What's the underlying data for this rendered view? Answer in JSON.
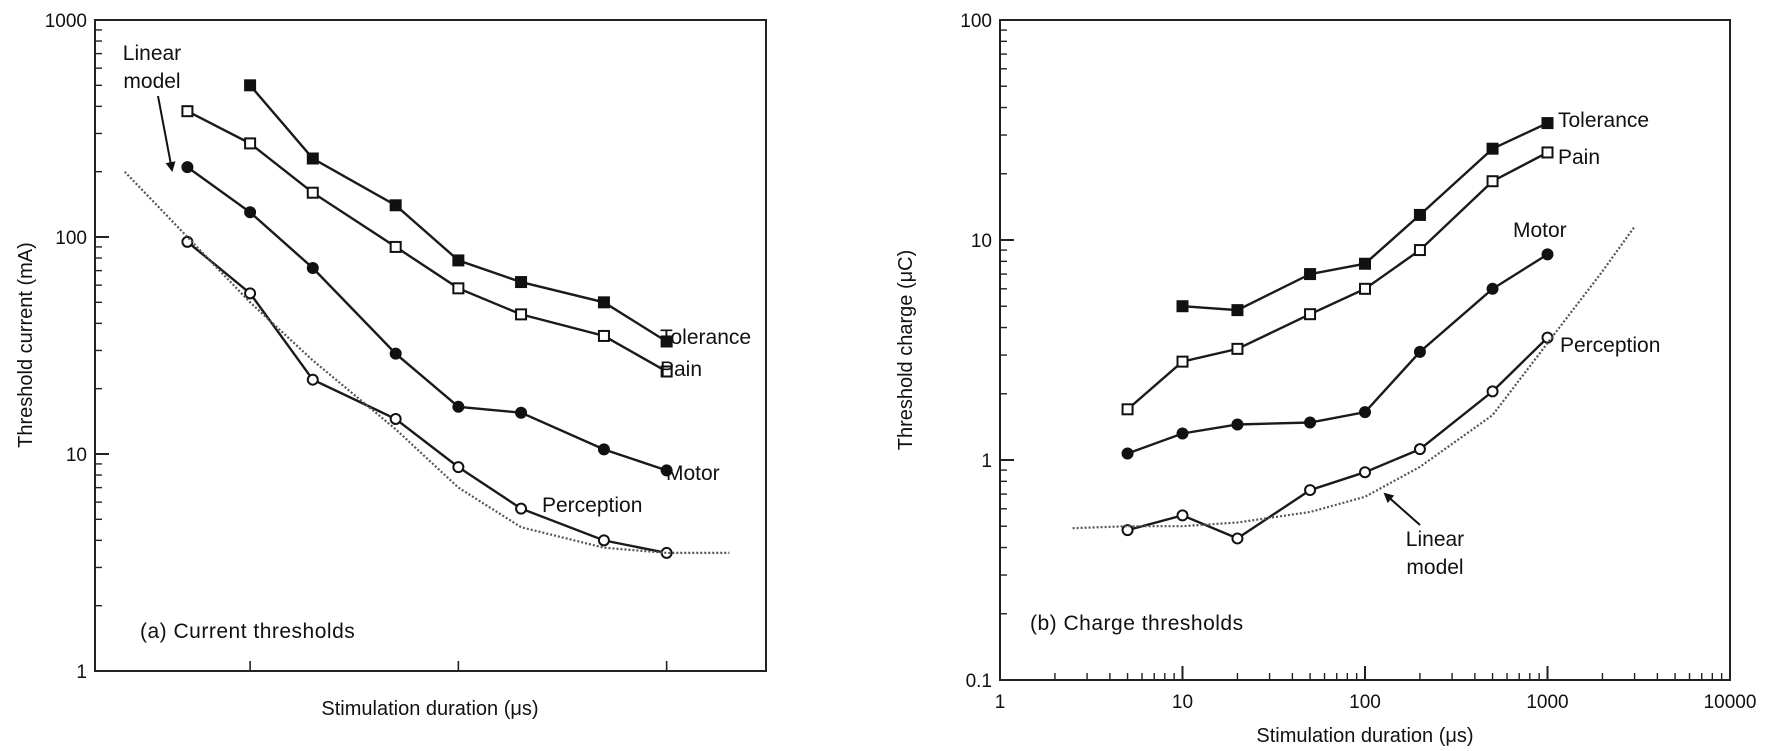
{
  "chart_data": [
    {
      "type": "line",
      "panel_label": "(a)  Current thresholds",
      "xlabel": "Stimulation duration (μs)",
      "ylabel": "Threshold current (mA)",
      "xscale": "log",
      "yscale": "log",
      "xlim": [
        1.8,
        3000
      ],
      "ylim": [
        1,
        1000
      ],
      "yticks": [
        "1",
        "10",
        "100",
        "1000"
      ],
      "series": [
        {
          "name": "Tolerance",
          "marker": "filled-square",
          "x": [
            10,
            20,
            50,
            100,
            200,
            500,
            1000
          ],
          "y": [
            500,
            230,
            140,
            78,
            62,
            50,
            33
          ]
        },
        {
          "name": "Pain",
          "marker": "open-square",
          "x": [
            5,
            10,
            20,
            50,
            100,
            200,
            500,
            1000
          ],
          "y": [
            380,
            270,
            160,
            90,
            58,
            44,
            35,
            24
          ]
        },
        {
          "name": "Motor",
          "marker": "filled-circle",
          "x": [
            5,
            10,
            20,
            50,
            100,
            200,
            500,
            1000
          ],
          "y": [
            210,
            130,
            72,
            29,
            16.5,
            15.5,
            10.5,
            8.4
          ]
        },
        {
          "name": "Perception",
          "marker": "open-circle",
          "x": [
            5,
            10,
            20,
            50,
            100,
            200,
            500,
            1000
          ],
          "y": [
            95,
            55,
            22,
            14.5,
            8.7,
            5.6,
            4.0,
            3.5
          ]
        },
        {
          "name": "Linear model",
          "marker": "none",
          "style": "dotted",
          "x": [
            2.5,
            5,
            10,
            20,
            50,
            100,
            200,
            500,
            1000,
            2000
          ],
          "y": [
            200,
            100,
            50,
            27,
            13,
            7,
            4.6,
            3.7,
            3.5,
            3.5
          ]
        }
      ],
      "annotations": [
        "Linear",
        "model",
        "Tolerance",
        "Pain",
        "Motor",
        "Perception"
      ]
    },
    {
      "type": "line",
      "panel_label": "(b)  Charge thresholds",
      "xlabel": "Stimulation duration (μs)",
      "ylabel": "Threshold charge (μC)",
      "xscale": "log",
      "yscale": "log",
      "xlim": [
        1,
        10000
      ],
      "ylim": [
        0.1,
        100
      ],
      "xticks": [
        "1",
        "10",
        "100",
        "1000",
        "10000"
      ],
      "yticks": [
        "0.1",
        "1",
        "10",
        "100"
      ],
      "series": [
        {
          "name": "Tolerance",
          "marker": "filled-square",
          "x": [
            10,
            20,
            50,
            100,
            200,
            500,
            1000
          ],
          "y": [
            5.0,
            4.8,
            7.0,
            7.8,
            13,
            26,
            34
          ]
        },
        {
          "name": "Pain",
          "marker": "open-square",
          "x": [
            5,
            10,
            20,
            50,
            100,
            200,
            500,
            1000
          ],
          "y": [
            1.7,
            2.8,
            3.2,
            4.6,
            6.0,
            9.0,
            18.5,
            25
          ]
        },
        {
          "name": "Motor",
          "marker": "filled-circle",
          "x": [
            5,
            10,
            20,
            50,
            100,
            200,
            500,
            1000
          ],
          "y": [
            1.07,
            1.32,
            1.45,
            1.48,
            1.65,
            3.1,
            6.0,
            8.6
          ]
        },
        {
          "name": "Perception",
          "marker": "open-circle",
          "x": [
            5,
            10,
            20,
            50,
            100,
            200,
            500,
            1000
          ],
          "y": [
            0.48,
            0.56,
            0.44,
            0.73,
            0.88,
            1.12,
            2.05,
            3.6
          ]
        },
        {
          "name": "Linear model",
          "marker": "none",
          "style": "dotted",
          "x": [
            2.5,
            5,
            10,
            20,
            50,
            100,
            200,
            500,
            1000,
            2000,
            3000
          ],
          "y": [
            0.49,
            0.5,
            0.5,
            0.52,
            0.58,
            0.68,
            0.93,
            1.6,
            3.4,
            7.2,
            11.5
          ]
        }
      ],
      "annotations": [
        "Tolerance",
        "Pain",
        "Motor",
        "Perception",
        "Linear",
        "model"
      ]
    }
  ]
}
